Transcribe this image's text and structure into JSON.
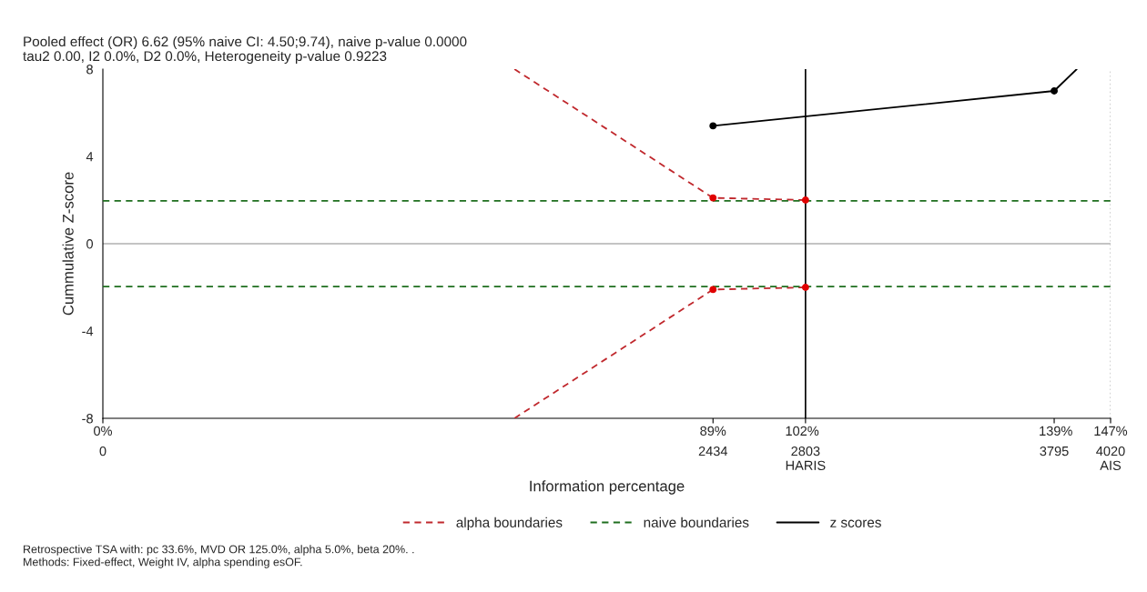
{
  "chart_data": {
    "type": "line",
    "title": "Pooled effect (OR) 6.62 (95% naive CI: 4.50;9.74), naive p-value 0.0000",
    "subtitle": "tau2 0.00, I2 0.0%, D2 0.0%, Heterogeneity p-value 0.9223",
    "xlabel": "Information percentage",
    "ylabel": "Cummulative Z-score",
    "series": [
      {
        "name": "alpha boundaries",
        "type": "line",
        "color": "#c0282d",
        "line_style": "dashed",
        "marker": "none",
        "x": [
          1642,
          2434,
          2803
        ],
        "values": [
          8,
          2.1,
          2.0
        ]
      },
      {
        "type": "line",
        "color": "#c0282d",
        "line_style": "dashed",
        "marker": "none",
        "x": [
          1642,
          2434,
          2803
        ],
        "values": [
          -8,
          -2.1,
          -2.0
        ]
      },
      {
        "type": "scatter",
        "color": "#e00000",
        "marker": "circle",
        "x": [
          2434,
          2803,
          2434,
          2803
        ],
        "values": [
          2.1,
          2.0,
          -2.1,
          -2.0
        ]
      },
      {
        "name": "naive boundaries",
        "type": "line",
        "color": "#1e6e1e",
        "line_style": "dashed",
        "marker": "none",
        "x": [
          0,
          4020
        ],
        "values": [
          1.96,
          1.96
        ]
      },
      {
        "type": "line",
        "color": "#1e6e1e",
        "line_style": "dashed",
        "marker": "none",
        "x": [
          0,
          4020
        ],
        "values": [
          -1.96,
          -1.96
        ]
      },
      {
        "name": "z scores",
        "type": "line",
        "color": "#000000",
        "line_style": "solid",
        "marker": "none",
        "x": [
          2434,
          3795,
          3885
        ],
        "values": [
          5.4,
          7.0,
          8.0
        ]
      },
      {
        "type": "scatter",
        "color": "#000000",
        "marker": "circle",
        "x": [
          2434,
          3795
        ],
        "values": [
          5.4,
          7.0
        ]
      }
    ],
    "xlim": [
      0,
      4020
    ],
    "xticks": [
      0,
      2434,
      {
        "value": 2803,
        "label": "2803\nHARIS"
      },
      3795,
      {
        "value": 4020,
        "label": "4020\nAIS"
      }
    ],
    "x2lim": [
      0,
      147
    ],
    "x2ticks": [
      {
        "value": 0,
        "label": "0%"
      },
      {
        "value": 89,
        "label": "89%"
      },
      {
        "value": 102,
        "label": "102%"
      },
      {
        "value": 139,
        "label": "139%"
      },
      {
        "value": 147,
        "label": "147%"
      }
    ],
    "ylim": [
      -8,
      8
    ],
    "yticks": [
      -8,
      -4,
      0,
      4,
      8
    ],
    "ref_lines": [
      {
        "axis": "y",
        "value": 0,
        "color": "#b0b0b0",
        "line_style": "solid"
      },
      {
        "axis": "x",
        "value": 2803,
        "color": "#000000",
        "line_style": "solid"
      },
      {
        "axis": "x",
        "value": 4020,
        "color": "#c8c8c8",
        "line_style": "dotted"
      }
    ],
    "grid": false,
    "legend": "bottom",
    "annotations": [
      "Retrospective TSA with: pc 33.6%, MVD OR 125.0%, alpha 5.0%, beta 20%. .",
      "Methods: Fixed-effect, Weight IV, alpha spending esOF."
    ]
  }
}
